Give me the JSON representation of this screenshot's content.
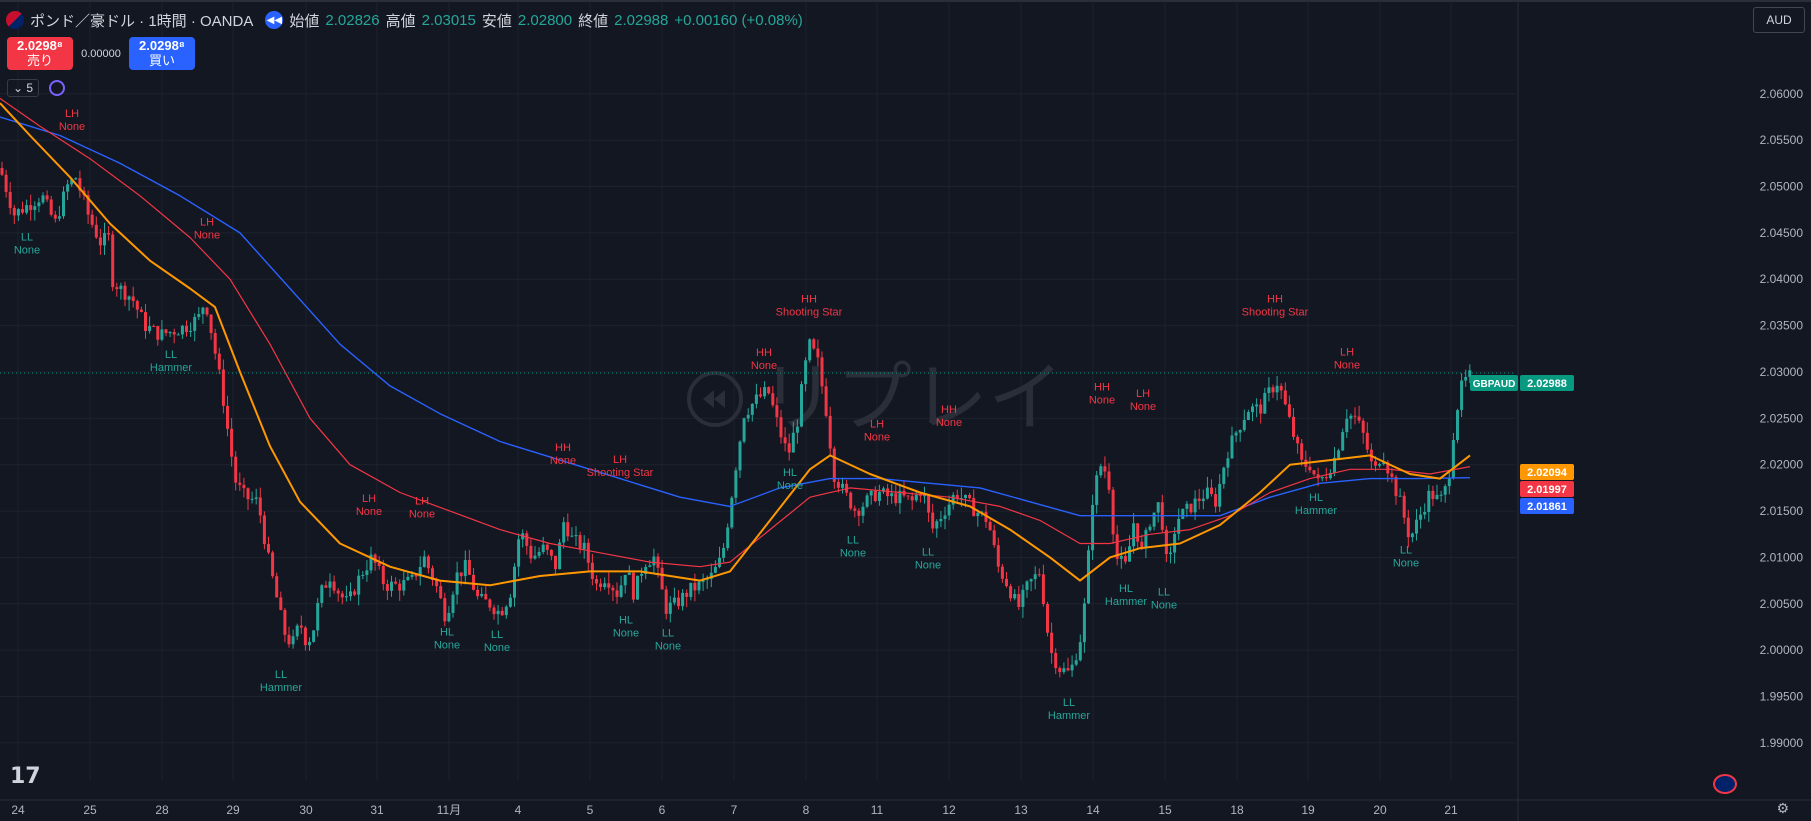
{
  "header": {
    "title": "ポンド／豪ドル · 1時間 · OANDA",
    "open_label": "始値",
    "open": "2.02826",
    "high_label": "高値",
    "high": "2.03015",
    "low_label": "安値",
    "low": "2.02800",
    "close_label": "終値",
    "close": "2.02988",
    "change": "+0.00160 (+0.08%)"
  },
  "trade": {
    "sell_price": "2.0298⁸",
    "sell_label": "売り",
    "spread": "0.00000",
    "buy_price": "2.0298⁸",
    "buy_label": "買い"
  },
  "indicators": {
    "collapse_label": "⌄ 5"
  },
  "currency": "AUD",
  "watermark": "リプレイ",
  "logo": "17",
  "colors": {
    "up": "#26a69a",
    "down": "#f23645",
    "background": "#131722",
    "grid": "#1e222d",
    "ma_fast": "#ff9800",
    "ma_mid": "#f23645",
    "ma_slow": "#2962ff",
    "label_high": "#f23645",
    "label_low": "#26a69a"
  },
  "chart_data": {
    "type": "candlestick",
    "symbol": "GBPAUD",
    "ylim": [
      1.986,
      2.0658
    ],
    "y_ticks": [
      "2.06000",
      "2.05500",
      "2.05000",
      "2.04500",
      "2.04000",
      "2.03500",
      "2.03000",
      "2.02500",
      "2.02000",
      "2.01500",
      "2.01000",
      "2.00500",
      "2.00000",
      "1.99500",
      "1.99000"
    ],
    "x_ticks": [
      "24",
      "25",
      "28",
      "29",
      "30",
      "31",
      "11月",
      "4",
      "5",
      "6",
      "7",
      "8",
      "11",
      "12",
      "13",
      "14",
      "15",
      "18",
      "19",
      "20",
      "21"
    ],
    "last_price": 2.02988,
    "price_tags": [
      {
        "label": "GBPAUD",
        "value": "2.02988",
        "price": 2.02988,
        "color": "#089981"
      },
      {
        "label": "",
        "value": "2.02094",
        "price": 2.02094,
        "color": "#ff9800"
      },
      {
        "label": "",
        "value": "2.01997",
        "price": 2.01997,
        "color": "#f23645"
      },
      {
        "label": "",
        "value": "2.01861",
        "price": 2.01861,
        "color": "#2962ff"
      }
    ],
    "price_path": [
      [
        0,
        2.052
      ],
      [
        14,
        2.047
      ],
      [
        28,
        2.048
      ],
      [
        42,
        2.049
      ],
      [
        55,
        2.046
      ],
      [
        67,
        2.05
      ],
      [
        76,
        2.051
      ],
      [
        88,
        2.047
      ],
      [
        100,
        2.044
      ],
      [
        110,
        2.0445
      ],
      [
        112,
        2.04
      ],
      [
        120,
        2.039
      ],
      [
        132,
        2.038
      ],
      [
        145,
        2.035
      ],
      [
        160,
        2.034
      ],
      [
        175,
        2.0345
      ],
      [
        188,
        2.035
      ],
      [
        200,
        2.036
      ],
      [
        205,
        2.038
      ],
      [
        212,
        2.034
      ],
      [
        222,
        2.028
      ],
      [
        230,
        2.022
      ],
      [
        236,
        2.018
      ],
      [
        245,
        2.0165
      ],
      [
        258,
        2.016
      ],
      [
        268,
        2.01
      ],
      [
        276,
        2.006
      ],
      [
        284,
        2.002
      ],
      [
        292,
        2.0005
      ],
      [
        300,
        2.003
      ],
      [
        306,
        2.001
      ],
      [
        312,
        2.0015
      ],
      [
        320,
        2.006
      ],
      [
        330,
        2.008
      ],
      [
        340,
        2.006
      ],
      [
        348,
        2.005
      ],
      [
        360,
        2.008
      ],
      [
        372,
        2.01
      ],
      [
        385,
        2.007
      ],
      [
        400,
        2.007
      ],
      [
        412,
        2.0075
      ],
      [
        424,
        2.01
      ],
      [
        436,
        2.007
      ],
      [
        446,
        2.0035
      ],
      [
        456,
        2.008
      ],
      [
        466,
        2.009
      ],
      [
        478,
        2.0055
      ],
      [
        490,
        2.005
      ],
      [
        500,
        2.004
      ],
      [
        510,
        2.006
      ],
      [
        520,
        2.013
      ],
      [
        532,
        2.01
      ],
      [
        544,
        2.011
      ],
      [
        556,
        2.009
      ],
      [
        564,
        2.014
      ],
      [
        572,
        2.012
      ],
      [
        584,
        2.011
      ],
      [
        596,
        2.007
      ],
      [
        606,
        2.008
      ],
      [
        618,
        2.006
      ],
      [
        626,
        2.009
      ],
      [
        634,
        2.006
      ],
      [
        644,
        2.0095
      ],
      [
        654,
        2.01
      ],
      [
        666,
        2.0045
      ],
      [
        676,
        2.005
      ],
      [
        690,
        2.0065
      ],
      [
        700,
        2.007
      ],
      [
        712,
        2.008
      ],
      [
        722,
        2.01
      ],
      [
        728,
        2.014
      ],
      [
        736,
        2.02
      ],
      [
        744,
        2.0255
      ],
      [
        756,
        2.027
      ],
      [
        768,
        2.028
      ],
      [
        780,
        2.0235
      ],
      [
        788,
        2.021
      ],
      [
        798,
        2.025
      ],
      [
        804,
        2.03
      ],
      [
        810,
        2.033
      ],
      [
        818,
        2.031
      ],
      [
        826,
        2.026
      ],
      [
        834,
        2.019
      ],
      [
        844,
        2.017
      ],
      [
        856,
        2.015
      ],
      [
        866,
        2.016
      ],
      [
        878,
        2.017
      ],
      [
        890,
        2.0165
      ],
      [
        902,
        2.0165
      ],
      [
        912,
        2.016
      ],
      [
        922,
        2.0175
      ],
      [
        932,
        2.013
      ],
      [
        944,
        2.015
      ],
      [
        956,
        2.017
      ],
      [
        966,
        2.016
      ],
      [
        976,
        2.015
      ],
      [
        988,
        2.014
      ],
      [
        998,
        2.009
      ],
      [
        1008,
        2.007
      ],
      [
        1018,
        2.0045
      ],
      [
        1028,
        2.007
      ],
      [
        1040,
        2.0085
      ],
      [
        1050,
        2.0
      ],
      [
        1060,
        1.998
      ],
      [
        1070,
        1.9975
      ],
      [
        1080,
        2.001
      ],
      [
        1086,
        2.006
      ],
      [
        1092,
        2.016
      ],
      [
        1100,
        2.02
      ],
      [
        1108,
        2.019
      ],
      [
        1116,
        2.01
      ],
      [
        1126,
        2.009
      ],
      [
        1134,
        2.014
      ],
      [
        1142,
        2.0105
      ],
      [
        1150,
        2.014
      ],
      [
        1160,
        2.016
      ],
      [
        1168,
        2.008
      ],
      [
        1176,
        2.014
      ],
      [
        1186,
        2.015
      ],
      [
        1196,
        2.016
      ],
      [
        1206,
        2.017
      ],
      [
        1216,
        2.016
      ],
      [
        1226,
        2.021
      ],
      [
        1236,
        2.0235
      ],
      [
        1248,
        2.026
      ],
      [
        1260,
        2.026
      ],
      [
        1270,
        2.028
      ],
      [
        1278,
        2.029
      ],
      [
        1286,
        2.026
      ],
      [
        1294,
        2.023
      ],
      [
        1302,
        2.02
      ],
      [
        1310,
        2.02
      ],
      [
        1318,
        2.018
      ],
      [
        1326,
        2.019
      ],
      [
        1336,
        2.021
      ],
      [
        1346,
        2.0255
      ],
      [
        1356,
        2.025
      ],
      [
        1364,
        2.023
      ],
      [
        1374,
        2.019
      ],
      [
        1382,
        2.0215
      ],
      [
        1390,
        2.019
      ],
      [
        1400,
        2.016
      ],
      [
        1410,
        2.012
      ],
      [
        1420,
        2.0145
      ],
      [
        1430,
        2.017
      ],
      [
        1440,
        2.016
      ],
      [
        1448,
        2.018
      ],
      [
        1454,
        2.024
      ],
      [
        1460,
        2.028
      ],
      [
        1468,
        2.0295
      ]
    ],
    "ma_fast_path": [
      [
        0,
        2.059
      ],
      [
        30,
        2.0555
      ],
      [
        70,
        2.051
      ],
      [
        110,
        2.046
      ],
      [
        150,
        2.042
      ],
      [
        190,
        2.039
      ],
      [
        215,
        2.037
      ],
      [
        240,
        2.03
      ],
      [
        270,
        2.022
      ],
      [
        300,
        2.016
      ],
      [
        340,
        2.0115
      ],
      [
        390,
        2.009
      ],
      [
        440,
        2.0075
      ],
      [
        490,
        2.007
      ],
      [
        540,
        2.008
      ],
      [
        590,
        2.0085
      ],
      [
        640,
        2.0085
      ],
      [
        700,
        2.0075
      ],
      [
        730,
        2.0085
      ],
      [
        770,
        2.014
      ],
      [
        810,
        2.0195
      ],
      [
        830,
        2.021
      ],
      [
        870,
        2.019
      ],
      [
        920,
        2.017
      ],
      [
        970,
        2.0155
      ],
      [
        1010,
        2.013
      ],
      [
        1050,
        2.01
      ],
      [
        1080,
        2.0075
      ],
      [
        1110,
        2.01
      ],
      [
        1140,
        2.011
      ],
      [
        1180,
        2.0115
      ],
      [
        1220,
        2.0135
      ],
      [
        1260,
        2.017
      ],
      [
        1290,
        2.02
      ],
      [
        1330,
        2.0205
      ],
      [
        1370,
        2.021
      ],
      [
        1410,
        2.019
      ],
      [
        1440,
        2.0185
      ],
      [
        1470,
        2.021
      ]
    ],
    "ma_mid_path": [
      [
        0,
        2.0595
      ],
      [
        40,
        2.0565
      ],
      [
        90,
        2.053
      ],
      [
        140,
        2.049
      ],
      [
        190,
        2.0445
      ],
      [
        230,
        2.04
      ],
      [
        270,
        2.033
      ],
      [
        310,
        2.025
      ],
      [
        350,
        2.02
      ],
      [
        400,
        2.017
      ],
      [
        450,
        2.015
      ],
      [
        500,
        2.013
      ],
      [
        550,
        2.0115
      ],
      [
        600,
        2.0105
      ],
      [
        650,
        2.0095
      ],
      [
        700,
        2.009
      ],
      [
        730,
        2.0095
      ],
      [
        770,
        2.013
      ],
      [
        810,
        2.0165
      ],
      [
        850,
        2.0175
      ],
      [
        900,
        2.017
      ],
      [
        950,
        2.0165
      ],
      [
        1000,
        2.0155
      ],
      [
        1040,
        2.014
      ],
      [
        1080,
        2.0115
      ],
      [
        1110,
        2.0115
      ],
      [
        1150,
        2.0125
      ],
      [
        1190,
        2.013
      ],
      [
        1230,
        2.0145
      ],
      [
        1270,
        2.017
      ],
      [
        1310,
        2.0185
      ],
      [
        1350,
        2.0195
      ],
      [
        1390,
        2.0195
      ],
      [
        1430,
        2.019
      ],
      [
        1470,
        2.0198
      ]
    ],
    "ma_slow_path": [
      [
        0,
        2.0575
      ],
      [
        60,
        2.0555
      ],
      [
        120,
        2.0525
      ],
      [
        180,
        2.049
      ],
      [
        240,
        2.045
      ],
      [
        290,
        2.039
      ],
      [
        340,
        2.033
      ],
      [
        390,
        2.0285
      ],
      [
        440,
        2.0255
      ],
      [
        500,
        2.0225
      ],
      [
        560,
        2.0205
      ],
      [
        620,
        2.0185
      ],
      [
        680,
        2.0165
      ],
      [
        730,
        2.0155
      ],
      [
        780,
        2.0175
      ],
      [
        830,
        2.0185
      ],
      [
        880,
        2.0185
      ],
      [
        930,
        2.018
      ],
      [
        980,
        2.0175
      ],
      [
        1030,
        2.016
      ],
      [
        1080,
        2.0145
      ],
      [
        1120,
        2.0145
      ],
      [
        1170,
        2.0145
      ],
      [
        1220,
        2.0145
      ],
      [
        1270,
        2.0165
      ],
      [
        1320,
        2.018
      ],
      [
        1370,
        2.0185
      ],
      [
        1420,
        2.0185
      ],
      [
        1470,
        2.0186
      ]
    ],
    "labels": [
      {
        "x": 72,
        "p": 2.0575,
        "kind": "high",
        "line1": "LH",
        "line2": "None"
      },
      {
        "x": 27,
        "p": 2.0442,
        "kind": "low",
        "line1": "LL",
        "line2": "None"
      },
      {
        "x": 207,
        "p": 2.0458,
        "kind": "high",
        "line1": "LH",
        "line2": "None"
      },
      {
        "x": 171,
        "p": 2.0315,
        "kind": "low",
        "line1": "LL",
        "line2": "Hammer"
      },
      {
        "x": 281,
        "p": 1.997,
        "kind": "low",
        "line1": "LL",
        "line2": "Hammer"
      },
      {
        "x": 369,
        "p": 2.016,
        "kind": "high",
        "line1": "LH",
        "line2": "None"
      },
      {
        "x": 422,
        "p": 2.0157,
        "kind": "high",
        "line1": "LH",
        "line2": "None"
      },
      {
        "x": 447,
        "p": 2.0016,
        "kind": "low",
        "line1": "HL",
        "line2": "None"
      },
      {
        "x": 497,
        "p": 2.0013,
        "kind": "low",
        "line1": "LL",
        "line2": "None"
      },
      {
        "x": 563,
        "p": 2.0215,
        "kind": "high",
        "line1": "HH",
        "line2": "None"
      },
      {
        "x": 620,
        "p": 2.0202,
        "kind": "high",
        "line1": "LH",
        "line2": "Shooting Star"
      },
      {
        "x": 626,
        "p": 2.0029,
        "kind": "low",
        "line1": "HL",
        "line2": "None"
      },
      {
        "x": 668,
        "p": 2.0015,
        "kind": "low",
        "line1": "LL",
        "line2": "None"
      },
      {
        "x": 764,
        "p": 2.0317,
        "kind": "high",
        "line1": "HH",
        "line2": "None"
      },
      {
        "x": 809,
        "p": 2.0375,
        "kind": "high",
        "line1": "HH",
        "line2": "Shooting Star"
      },
      {
        "x": 790,
        "p": 2.0188,
        "kind": "low",
        "line1": "HL",
        "line2": "None"
      },
      {
        "x": 877,
        "p": 2.024,
        "kind": "high",
        "line1": "LH",
        "line2": "None"
      },
      {
        "x": 853,
        "p": 2.0115,
        "kind": "low",
        "line1": "LL",
        "line2": "None"
      },
      {
        "x": 949,
        "p": 2.0256,
        "kind": "high",
        "line1": "HH",
        "line2": "None"
      },
      {
        "x": 928,
        "p": 2.0102,
        "kind": "low",
        "line1": "LL",
        "line2": "None"
      },
      {
        "x": 1102,
        "p": 2.028,
        "kind": "high",
        "line1": "HH",
        "line2": "None"
      },
      {
        "x": 1143,
        "p": 2.0273,
        "kind": "high",
        "line1": "LH",
        "line2": "None"
      },
      {
        "x": 1069,
        "p": 1.994,
        "kind": "low",
        "line1": "LL",
        "line2": "Hammer"
      },
      {
        "x": 1126,
        "p": 2.0063,
        "kind": "low",
        "line1": "HL",
        "line2": "Hammer"
      },
      {
        "x": 1164,
        "p": 2.0059,
        "kind": "low",
        "line1": "LL",
        "line2": "None"
      },
      {
        "x": 1275,
        "p": 2.0375,
        "kind": "high",
        "line1": "HH",
        "line2": "Shooting Star"
      },
      {
        "x": 1347,
        "p": 2.0318,
        "kind": "high",
        "line1": "LH",
        "line2": "None"
      },
      {
        "x": 1316,
        "p": 2.0161,
        "kind": "low",
        "line1": "HL",
        "line2": "Hammer"
      },
      {
        "x": 1406,
        "p": 2.0104,
        "kind": "low",
        "line1": "LL",
        "line2": "None"
      }
    ]
  }
}
